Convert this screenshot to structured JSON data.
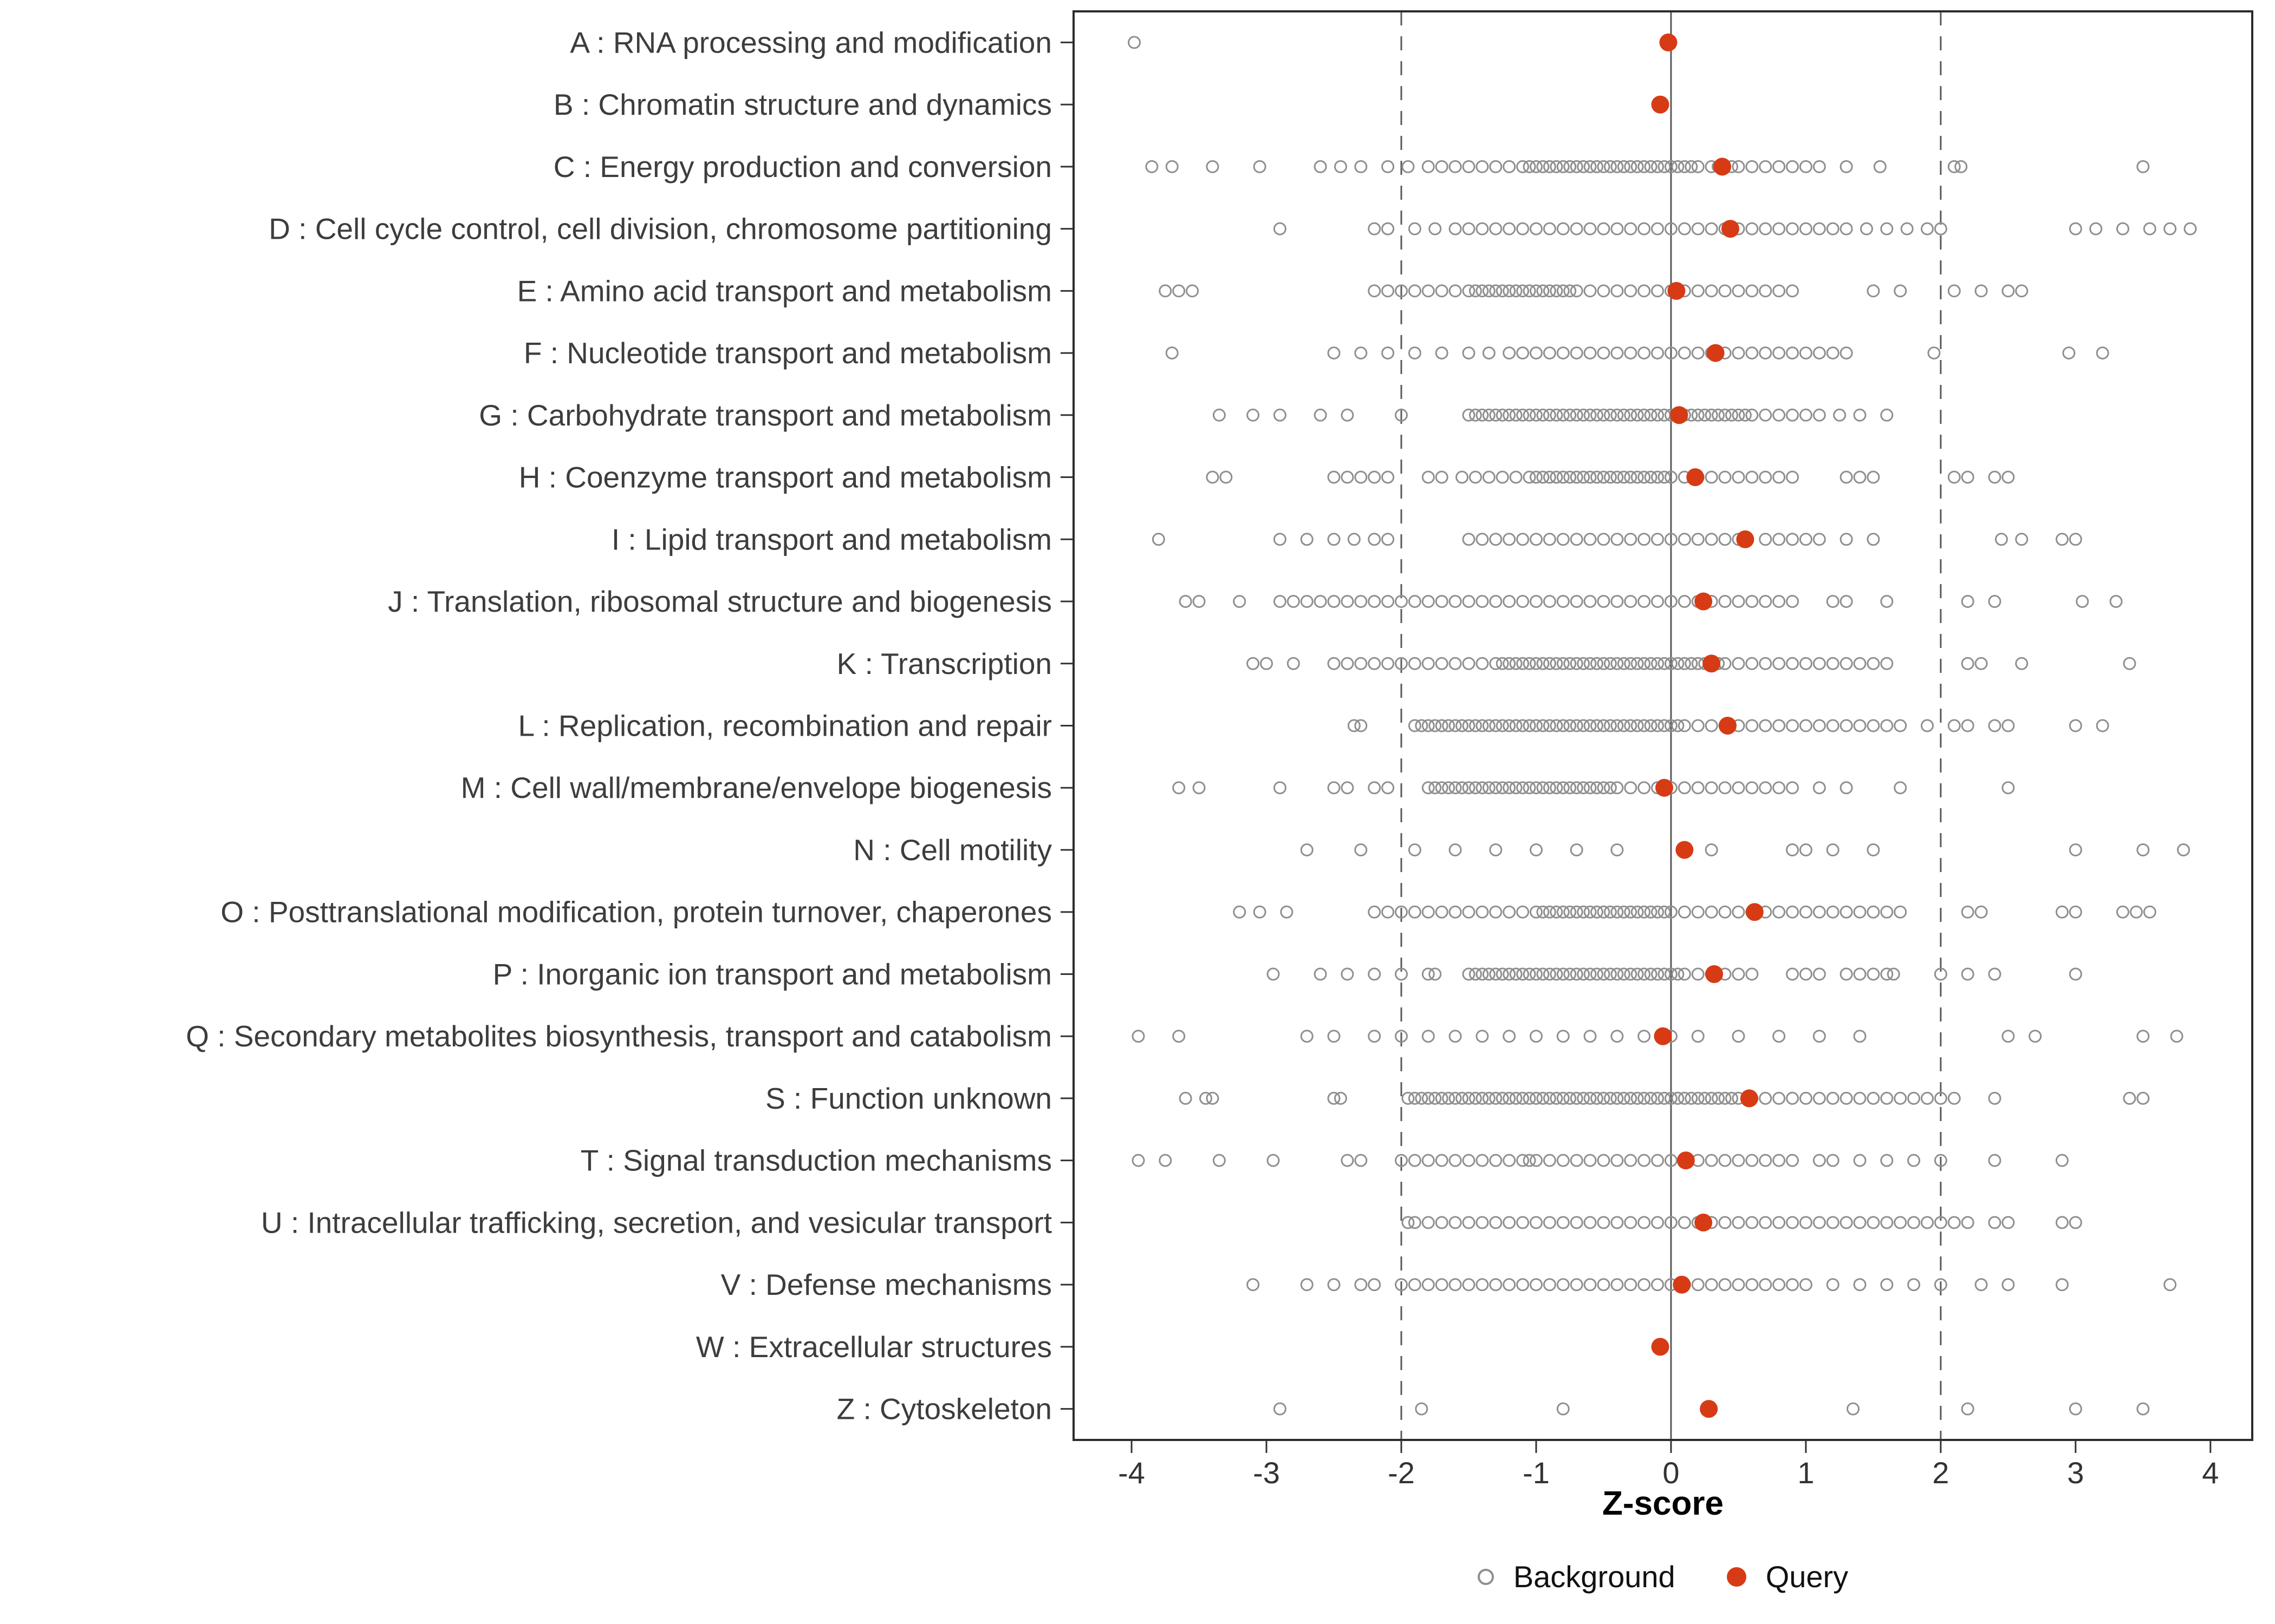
{
  "chart_data": {
    "type": "scatter",
    "title": "",
    "xlabel": "Z-score",
    "xlim": [
      -4.43,
      4.31
    ],
    "x_ticks": [
      -4,
      -3,
      -2,
      -1,
      0,
      1,
      2,
      3,
      4
    ],
    "grid": false,
    "legend_position": "bottom",
    "reference_lines": {
      "solid": [
        0
      ],
      "dashed": [
        -2,
        2
      ]
    },
    "legend": {
      "background_label": "Background",
      "query_label": "Query"
    },
    "colors": {
      "query_fill": "#d63b15",
      "background_stroke": "#8f8f8f",
      "axis_text": "#333333",
      "label_text": "#3d3d3d",
      "ref_line": "#595959",
      "panel_border": "#2b2b2b"
    },
    "categories": [
      {
        "label": "A : RNA processing and modification",
        "query": -0.02,
        "background": [
          -3.98
        ]
      },
      {
        "label": "B : Chromatin structure and dynamics",
        "query": -0.08,
        "background": []
      },
      {
        "label": "C : Energy production and conversion",
        "query": 0.38,
        "background": [
          -3.85,
          -3.7,
          -3.4,
          -3.05,
          -2.6,
          -2.45,
          -2.3,
          -2.1,
          -1.95,
          -1.8,
          -1.7,
          -1.6,
          -1.5,
          -1.4,
          -1.3,
          -1.2,
          -1.1,
          -1.05,
          -1.0,
          -0.95,
          -0.9,
          -0.85,
          -0.8,
          -0.75,
          -0.7,
          -0.65,
          -0.6,
          -0.55,
          -0.5,
          -0.45,
          -0.4,
          -0.35,
          -0.3,
          -0.25,
          -0.2,
          -0.15,
          -0.1,
          -0.05,
          0.0,
          0.05,
          0.1,
          0.15,
          0.2,
          0.3,
          0.35,
          0.45,
          0.5,
          0.6,
          0.7,
          0.8,
          0.9,
          1.0,
          1.1,
          1.3,
          1.55,
          2.1,
          2.15,
          3.5
        ]
      },
      {
        "label": "D : Cell cycle control, cell division, chromosome partitioning",
        "query": 0.44,
        "background": [
          -2.9,
          -2.2,
          -2.1,
          -1.9,
          -1.75,
          -1.6,
          -1.5,
          -1.4,
          -1.3,
          -1.2,
          -1.1,
          -1.0,
          -0.9,
          -0.8,
          -0.7,
          -0.6,
          -0.5,
          -0.4,
          -0.3,
          -0.2,
          -0.1,
          0.0,
          0.1,
          0.2,
          0.3,
          0.4,
          0.5,
          0.6,
          0.7,
          0.8,
          0.9,
          1.0,
          1.1,
          1.2,
          1.3,
          1.45,
          1.6,
          1.75,
          1.9,
          2.0,
          3.0,
          3.15,
          3.35,
          3.55,
          3.7,
          3.85
        ]
      },
      {
        "label": "E : Amino acid transport and metabolism",
        "query": 0.04,
        "background": [
          -3.75,
          -3.65,
          -3.55,
          -2.2,
          -2.1,
          -2.0,
          -1.9,
          -1.8,
          -1.7,
          -1.6,
          -1.5,
          -1.45,
          -1.4,
          -1.35,
          -1.3,
          -1.25,
          -1.2,
          -1.15,
          -1.1,
          -1.05,
          -1.0,
          -0.95,
          -0.9,
          -0.85,
          -0.8,
          -0.75,
          -0.7,
          -0.6,
          -0.5,
          -0.4,
          -0.3,
          -0.2,
          -0.1,
          0.0,
          0.1,
          0.2,
          0.3,
          0.4,
          0.5,
          0.6,
          0.7,
          0.8,
          0.9,
          1.5,
          1.7,
          2.1,
          2.3,
          2.5,
          2.6
        ]
      },
      {
        "label": "F : Nucleotide transport and metabolism",
        "query": 0.33,
        "background": [
          -3.7,
          -2.5,
          -2.3,
          -2.1,
          -1.9,
          -1.7,
          -1.5,
          -1.35,
          -1.2,
          -1.1,
          -1.0,
          -0.9,
          -0.8,
          -0.7,
          -0.6,
          -0.5,
          -0.4,
          -0.3,
          -0.2,
          -0.1,
          0.0,
          0.1,
          0.2,
          0.3,
          0.4,
          0.5,
          0.6,
          0.7,
          0.8,
          0.9,
          1.0,
          1.1,
          1.2,
          1.3,
          1.95,
          2.95,
          3.2
        ]
      },
      {
        "label": "G : Carbohydrate transport and metabolism",
        "query": 0.06,
        "background": [
          -3.35,
          -3.1,
          -2.9,
          -2.6,
          -2.4,
          -2.0,
          -1.5,
          -1.45,
          -1.4,
          -1.35,
          -1.3,
          -1.25,
          -1.2,
          -1.15,
          -1.1,
          -1.05,
          -1.0,
          -0.95,
          -0.9,
          -0.85,
          -0.8,
          -0.75,
          -0.7,
          -0.65,
          -0.6,
          -0.55,
          -0.5,
          -0.45,
          -0.4,
          -0.35,
          -0.3,
          -0.25,
          -0.2,
          -0.15,
          -0.1,
          -0.05,
          0.0,
          0.05,
          0.1,
          0.15,
          0.2,
          0.25,
          0.3,
          0.35,
          0.4,
          0.45,
          0.5,
          0.55,
          0.6,
          0.7,
          0.8,
          0.9,
          1.0,
          1.1,
          1.25,
          1.4,
          1.6
        ]
      },
      {
        "label": "H : Coenzyme transport and metabolism",
        "query": 0.18,
        "background": [
          -3.4,
          -3.3,
          -2.5,
          -2.4,
          -2.3,
          -2.2,
          -2.1,
          -1.8,
          -1.7,
          -1.55,
          -1.45,
          -1.35,
          -1.25,
          -1.15,
          -1.05,
          -1.0,
          -0.95,
          -0.9,
          -0.85,
          -0.8,
          -0.75,
          -0.7,
          -0.65,
          -0.6,
          -0.55,
          -0.5,
          -0.45,
          -0.4,
          -0.35,
          -0.3,
          -0.25,
          -0.2,
          -0.15,
          -0.1,
          -0.05,
          0.0,
          0.1,
          0.2,
          0.3,
          0.4,
          0.5,
          0.6,
          0.7,
          0.8,
          0.9,
          1.3,
          1.4,
          1.5,
          2.1,
          2.2,
          2.4,
          2.5
        ]
      },
      {
        "label": "I : Lipid transport and metabolism",
        "query": 0.55,
        "background": [
          -3.8,
          -2.9,
          -2.7,
          -2.5,
          -2.35,
          -2.2,
          -2.1,
          -1.5,
          -1.4,
          -1.3,
          -1.2,
          -1.1,
          -1.0,
          -0.9,
          -0.8,
          -0.7,
          -0.6,
          -0.5,
          -0.4,
          -0.3,
          -0.2,
          -0.1,
          0.0,
          0.1,
          0.2,
          0.3,
          0.4,
          0.5,
          0.7,
          0.8,
          0.9,
          1.0,
          1.1,
          1.3,
          1.5,
          2.45,
          2.6,
          2.9,
          3.0
        ]
      },
      {
        "label": "J : Translation, ribosomal structure and biogenesis",
        "query": 0.24,
        "background": [
          -3.6,
          -3.5,
          -3.2,
          -2.9,
          -2.8,
          -2.7,
          -2.6,
          -2.5,
          -2.4,
          -2.3,
          -2.2,
          -2.1,
          -2.0,
          -1.9,
          -1.8,
          -1.7,
          -1.6,
          -1.5,
          -1.4,
          -1.3,
          -1.2,
          -1.1,
          -1.0,
          -0.9,
          -0.8,
          -0.7,
          -0.6,
          -0.5,
          -0.4,
          -0.3,
          -0.2,
          -0.1,
          0.0,
          0.1,
          0.2,
          0.3,
          0.4,
          0.5,
          0.6,
          0.7,
          0.8,
          0.9,
          1.2,
          1.3,
          1.6,
          2.2,
          2.4,
          3.05,
          3.3
        ]
      },
      {
        "label": "K : Transcription",
        "query": 0.3,
        "background": [
          -3.1,
          -3.0,
          -2.8,
          -2.5,
          -2.4,
          -2.3,
          -2.2,
          -2.1,
          -2.0,
          -1.9,
          -1.8,
          -1.7,
          -1.6,
          -1.5,
          -1.4,
          -1.3,
          -1.25,
          -1.2,
          -1.15,
          -1.1,
          -1.05,
          -1.0,
          -0.95,
          -0.9,
          -0.85,
          -0.8,
          -0.75,
          -0.7,
          -0.65,
          -0.6,
          -0.55,
          -0.5,
          -0.45,
          -0.4,
          -0.35,
          -0.3,
          -0.25,
          -0.2,
          -0.15,
          -0.1,
          -0.05,
          0.0,
          0.05,
          0.1,
          0.15,
          0.2,
          0.25,
          0.3,
          0.35,
          0.4,
          0.5,
          0.6,
          0.7,
          0.8,
          0.9,
          1.0,
          1.1,
          1.2,
          1.3,
          1.4,
          1.5,
          1.6,
          2.2,
          2.3,
          2.6,
          3.4
        ]
      },
      {
        "label": "L : Replication, recombination and repair",
        "query": 0.42,
        "background": [
          -2.35,
          -2.3,
          -1.9,
          -1.85,
          -1.8,
          -1.75,
          -1.7,
          -1.65,
          -1.6,
          -1.55,
          -1.5,
          -1.45,
          -1.4,
          -1.35,
          -1.3,
          -1.25,
          -1.2,
          -1.15,
          -1.1,
          -1.05,
          -1.0,
          -0.95,
          -0.9,
          -0.85,
          -0.8,
          -0.75,
          -0.7,
          -0.65,
          -0.6,
          -0.55,
          -0.5,
          -0.45,
          -0.4,
          -0.35,
          -0.3,
          -0.25,
          -0.2,
          -0.15,
          -0.1,
          -0.05,
          0.0,
          0.05,
          0.1,
          0.2,
          0.3,
          0.4,
          0.5,
          0.6,
          0.7,
          0.8,
          0.9,
          1.0,
          1.1,
          1.2,
          1.3,
          1.4,
          1.5,
          1.6,
          1.7,
          1.9,
          2.1,
          2.2,
          2.4,
          2.5,
          3.0,
          3.2
        ]
      },
      {
        "label": "M : Cell wall/membrane/envelope biogenesis",
        "query": -0.05,
        "background": [
          -3.65,
          -3.5,
          -2.9,
          -2.5,
          -2.4,
          -2.2,
          -2.1,
          -1.8,
          -1.75,
          -1.7,
          -1.65,
          -1.6,
          -1.55,
          -1.5,
          -1.45,
          -1.4,
          -1.35,
          -1.3,
          -1.25,
          -1.2,
          -1.15,
          -1.1,
          -1.05,
          -1.0,
          -0.95,
          -0.9,
          -0.85,
          -0.8,
          -0.75,
          -0.7,
          -0.65,
          -0.6,
          -0.55,
          -0.5,
          -0.45,
          -0.4,
          -0.3,
          -0.2,
          -0.1,
          0.0,
          0.1,
          0.2,
          0.3,
          0.4,
          0.5,
          0.6,
          0.7,
          0.8,
          0.9,
          1.1,
          1.3,
          1.7,
          2.5
        ]
      },
      {
        "label": "N : Cell motility",
        "query": 0.1,
        "background": [
          -2.7,
          -2.3,
          -1.9,
          -1.6,
          -1.3,
          -1.0,
          -0.7,
          -0.4,
          0.3,
          0.9,
          1.0,
          1.2,
          1.5,
          3.0,
          3.5,
          3.8
        ]
      },
      {
        "label": "O : Posttranslational modification, protein turnover, chaperones",
        "query": 0.62,
        "background": [
          -3.2,
          -3.05,
          -2.85,
          -2.2,
          -2.1,
          -2.0,
          -1.9,
          -1.8,
          -1.7,
          -1.6,
          -1.5,
          -1.4,
          -1.3,
          -1.2,
          -1.1,
          -1.0,
          -0.95,
          -0.9,
          -0.85,
          -0.8,
          -0.75,
          -0.7,
          -0.65,
          -0.6,
          -0.55,
          -0.5,
          -0.45,
          -0.4,
          -0.35,
          -0.3,
          -0.25,
          -0.2,
          -0.15,
          -0.1,
          -0.05,
          0.0,
          0.1,
          0.2,
          0.3,
          0.4,
          0.5,
          0.6,
          0.7,
          0.8,
          0.9,
          1.0,
          1.1,
          1.2,
          1.3,
          1.4,
          1.5,
          1.6,
          1.7,
          2.2,
          2.3,
          2.9,
          3.0,
          3.35,
          3.45,
          3.55
        ]
      },
      {
        "label": "P : Inorganic ion transport and metabolism",
        "query": 0.32,
        "background": [
          -2.95,
          -2.6,
          -2.4,
          -2.2,
          -2.0,
          -1.8,
          -1.75,
          -1.5,
          -1.45,
          -1.4,
          -1.35,
          -1.3,
          -1.25,
          -1.2,
          -1.15,
          -1.1,
          -1.05,
          -1.0,
          -0.95,
          -0.9,
          -0.85,
          -0.8,
          -0.75,
          -0.7,
          -0.65,
          -0.6,
          -0.55,
          -0.5,
          -0.45,
          -0.4,
          -0.35,
          -0.3,
          -0.25,
          -0.2,
          -0.15,
          -0.1,
          -0.05,
          0.0,
          0.05,
          0.1,
          0.2,
          0.3,
          0.4,
          0.5,
          0.6,
          0.9,
          1.0,
          1.1,
          1.3,
          1.4,
          1.5,
          1.6,
          1.65,
          2.0,
          2.2,
          2.4,
          3.0
        ]
      },
      {
        "label": "Q : Secondary metabolites biosynthesis, transport and catabolism",
        "query": -0.06,
        "background": [
          -3.95,
          -3.65,
          -2.7,
          -2.5,
          -2.2,
          -2.0,
          -1.8,
          -1.6,
          -1.4,
          -1.2,
          -1.0,
          -0.8,
          -0.6,
          -0.4,
          -0.2,
          0.0,
          0.2,
          0.5,
          0.8,
          1.1,
          1.4,
          2.5,
          2.7,
          3.5,
          3.75
        ]
      },
      {
        "label": "S : Function unknown",
        "query": 0.58,
        "background": [
          -3.6,
          -3.45,
          -3.4,
          -2.5,
          -2.45,
          -1.95,
          -1.9,
          -1.85,
          -1.8,
          -1.75,
          -1.7,
          -1.65,
          -1.6,
          -1.55,
          -1.5,
          -1.45,
          -1.4,
          -1.35,
          -1.3,
          -1.25,
          -1.2,
          -1.15,
          -1.1,
          -1.05,
          -1.0,
          -0.95,
          -0.9,
          -0.85,
          -0.8,
          -0.75,
          -0.7,
          -0.65,
          -0.6,
          -0.55,
          -0.5,
          -0.45,
          -0.4,
          -0.35,
          -0.3,
          -0.25,
          -0.2,
          -0.15,
          -0.1,
          -0.05,
          0.0,
          0.05,
          0.1,
          0.15,
          0.2,
          0.25,
          0.3,
          0.35,
          0.4,
          0.45,
          0.5,
          0.6,
          0.7,
          0.8,
          0.9,
          1.0,
          1.1,
          1.2,
          1.3,
          1.4,
          1.5,
          1.6,
          1.7,
          1.8,
          1.9,
          2.0,
          2.1,
          2.4,
          3.4,
          3.5
        ]
      },
      {
        "label": "T : Signal transduction mechanisms",
        "query": 0.11,
        "background": [
          -3.95,
          -3.75,
          -3.35,
          -2.95,
          -2.4,
          -2.3,
          -2.0,
          -1.9,
          -1.8,
          -1.7,
          -1.6,
          -1.5,
          -1.4,
          -1.3,
          -1.2,
          -1.1,
          -1.05,
          -1.0,
          -0.9,
          -0.8,
          -0.7,
          -0.6,
          -0.5,
          -0.4,
          -0.3,
          -0.2,
          -0.1,
          0.0,
          0.1,
          0.2,
          0.3,
          0.4,
          0.5,
          0.6,
          0.7,
          0.8,
          0.9,
          1.1,
          1.2,
          1.4,
          1.6,
          1.8,
          2.0,
          2.4,
          2.9
        ]
      },
      {
        "label": "U : Intracellular trafficking, secretion, and vesicular transport",
        "query": 0.24,
        "background": [
          -1.95,
          -1.9,
          -1.8,
          -1.7,
          -1.6,
          -1.5,
          -1.4,
          -1.3,
          -1.2,
          -1.1,
          -1.0,
          -0.9,
          -0.8,
          -0.7,
          -0.6,
          -0.5,
          -0.4,
          -0.3,
          -0.2,
          -0.1,
          0.0,
          0.1,
          0.2,
          0.3,
          0.4,
          0.5,
          0.6,
          0.7,
          0.8,
          0.9,
          1.0,
          1.1,
          1.2,
          1.3,
          1.4,
          1.5,
          1.6,
          1.7,
          1.8,
          1.9,
          2.0,
          2.1,
          2.2,
          2.4,
          2.5,
          2.9,
          3.0
        ]
      },
      {
        "label": "V : Defense mechanisms",
        "query": 0.08,
        "background": [
          -3.1,
          -2.7,
          -2.5,
          -2.3,
          -2.2,
          -2.0,
          -1.9,
          -1.8,
          -1.7,
          -1.6,
          -1.5,
          -1.4,
          -1.3,
          -1.2,
          -1.1,
          -1.0,
          -0.9,
          -0.8,
          -0.7,
          -0.6,
          -0.5,
          -0.4,
          -0.3,
          -0.2,
          -0.1,
          0.0,
          0.1,
          0.2,
          0.3,
          0.4,
          0.5,
          0.6,
          0.7,
          0.8,
          0.9,
          1.0,
          1.2,
          1.4,
          1.6,
          1.8,
          2.0,
          2.3,
          2.5,
          2.9,
          3.7
        ]
      },
      {
        "label": "W : Extracellular structures",
        "query": -0.08,
        "background": []
      },
      {
        "label": "Z : Cytoskeleton",
        "query": 0.28,
        "background": [
          -2.9,
          -1.85,
          -0.8,
          1.35,
          2.2,
          3.0,
          3.5
        ]
      }
    ]
  }
}
